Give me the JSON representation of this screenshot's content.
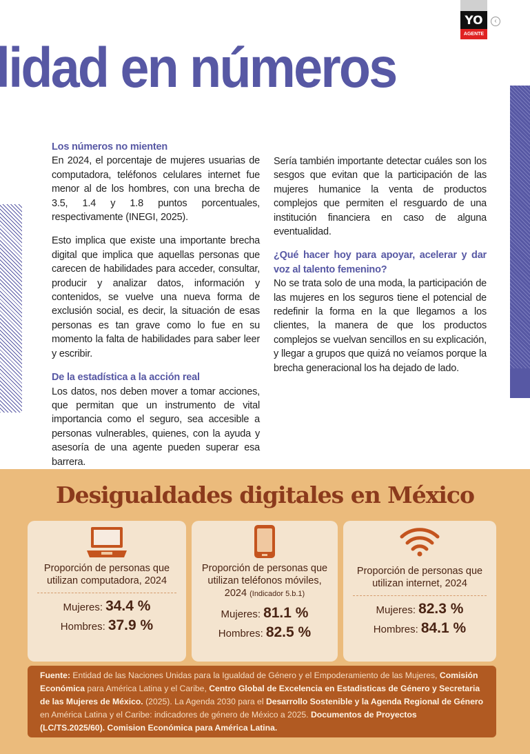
{
  "header": {
    "logo_top": "YO",
    "logo_bottom": "AGENTE",
    "back_icon": "chevron-left-icon",
    "title": "lidad en números"
  },
  "left_column": [
    {
      "heading": "Los números no mienten",
      "text": "En 2024, el porcentaje de mujeres usuarias de computadora, teléfonos celulares internet fue menor al de los hombres, con una brecha de 3.5, 1.4 y 1.8 puntos porcentuales, respectivamente (INEGI, 2025)."
    },
    {
      "heading": "",
      "text": "Esto implica que existe una importante brecha digital que implica que aquellas personas que carecen de habilidades para acceder, consultar, producir y analizar datos, información y contenidos, se vuelve una nueva forma de exclusión social, es decir, la situación de esas personas es tan grave como lo fue en su momento la falta de habilidades para saber leer y escribir."
    },
    {
      "heading": "De la estadística a la acción real",
      "text": "Los datos, nos deben mover a tomar acciones, que permitan que un instrumento de vital importancia como el seguro, sea accesible a personas vulnerables, quienes, con la ayuda y asesoría de una agente pueden superar esa barrera."
    }
  ],
  "right_column": [
    {
      "heading": "",
      "text": "Sería también importante detectar cuáles son los sesgos que evitan que la participación de las mujeres humanice la venta de productos complejos que permiten el resguardo de una institución financiera en caso de alguna eventualidad."
    },
    {
      "heading": "¿Qué hacer hoy para apoyar, acelerar y dar voz al talento femenino?",
      "text": "No se trata solo de una moda, la participación de las mujeres en los seguros tiene el potencial de redefinir la forma en la que llegamos a los clientes, la manera de que los productos complejos se vuelvan sencillos en su explicación, y llegar a grupos que quizá no veíamos porque la brecha generacional los ha dejado de lado."
    }
  ],
  "infographic": {
    "title": "Desigualdades digitales en México",
    "colors": {
      "accent": "#c4541e",
      "title": "#8b3a1c",
      "source_bg": "#b15a22"
    },
    "cards": [
      {
        "icon": "laptop-icon",
        "label": "Proporción de personas que utilizan computadora,",
        "year": "2024",
        "note": "",
        "women_label": "Mujeres:",
        "women": "34.4 %",
        "men_label": "Hombres:",
        "men": "37.9 %"
      },
      {
        "icon": "smartphone-icon",
        "label": "Proporción de personas que utilizan teléfonos móviles,",
        "year": "2024",
        "note": "(Indicador 5.b.1)",
        "women_label": "Mujeres:",
        "women": "81.1 %",
        "men_label": "Hombres:",
        "men": "82.5 %"
      },
      {
        "icon": "wifi-icon",
        "label": "Proporción de personas que utilizan internet,",
        "year": "2024",
        "note": "",
        "women_label": "Mujeres:",
        "women": "82.3 %",
        "men_label": "Hombres:",
        "men": "84.1 %"
      }
    ],
    "source": {
      "s1": "Fuente:",
      "s2": "Entidad de las Naciones Unidas para la Igualdad de Género y el Empoderamiento de las Mujeres,",
      "s3": "Comisión Económica",
      "s4": "para América Latina y el Caribe,",
      "s5": "Centro Global de Excelencia en Estadisticas de Género y Secretaria de las Mujeres de México.",
      "s6": "(2025). La Agenda 2030 para el",
      "s7": "Desarrollo Sostenible y la Agenda Regional de Género",
      "s8": "en América Latina y el Caribe: indicadores de género de México a 2025.",
      "s9": "Documentos de Proyectos (LC/TS.2025/60). Comision Económica para América Latina."
    }
  }
}
